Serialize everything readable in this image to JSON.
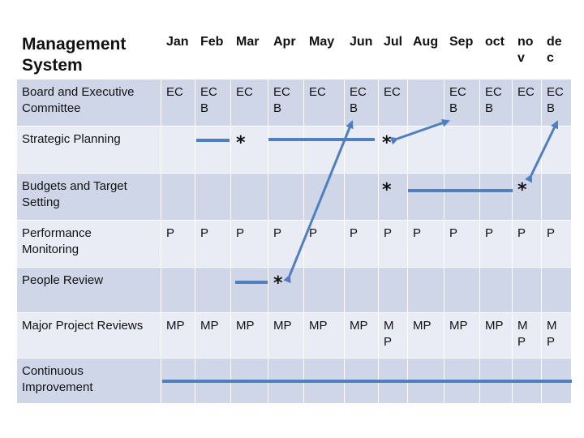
{
  "title": "Management\nSystem",
  "months": [
    "Jan",
    "Feb",
    "Mar",
    "Apr",
    "May",
    "Jun",
    "Jul",
    "Aug",
    "Sep",
    "oct",
    "no\nv",
    "de\nc"
  ],
  "rows": [
    {
      "label": "Board and Executive\nCommittee",
      "cells": [
        "EC",
        "EC\nB",
        "EC",
        "EC\nB",
        "EC",
        "EC\nB",
        "EC",
        "",
        "EC\nB",
        "EC\nB",
        "EC",
        "EC\nB"
      ]
    },
    {
      "label": "Strategic Planning",
      "cells": [
        "",
        "",
        "",
        "",
        "",
        "",
        "",
        "",
        "",
        "",
        "",
        ""
      ]
    },
    {
      "label": "Budgets and Target\nSetting",
      "cells": [
        "",
        "",
        "",
        "",
        "",
        "",
        "",
        "",
        "",
        "",
        "",
        ""
      ]
    },
    {
      "label": "Performance\nMonitoring",
      "cells": [
        "P",
        "P",
        "P",
        "P",
        "P",
        "P",
        "P",
        "P",
        "P",
        "P",
        "P",
        "P"
      ]
    },
    {
      "label": "People Review",
      "cells": [
        "",
        "",
        "",
        "",
        "",
        "",
        "",
        "",
        "",
        "",
        "",
        ""
      ]
    },
    {
      "label": "Major Project Reviews",
      "cells": [
        "MP",
        "MP",
        "MP",
        "MP",
        "MP",
        "MP",
        "M\nP",
        "MP",
        "MP",
        "MP",
        "M\nP",
        "M\nP"
      ]
    },
    {
      "label": "Continuous\nImprovement",
      "cells": [
        "",
        "",
        "",
        "",
        "",
        "",
        "",
        "",
        "",
        "",
        "",
        ""
      ]
    }
  ],
  "milestone_symbol": "*",
  "colors": {
    "header_bg": "#ffffff",
    "row_dark": "#cfd6e8",
    "row_light": "#e9ecf5",
    "grid_line": "#ffffff",
    "line_color": "#4f7fbf"
  }
}
